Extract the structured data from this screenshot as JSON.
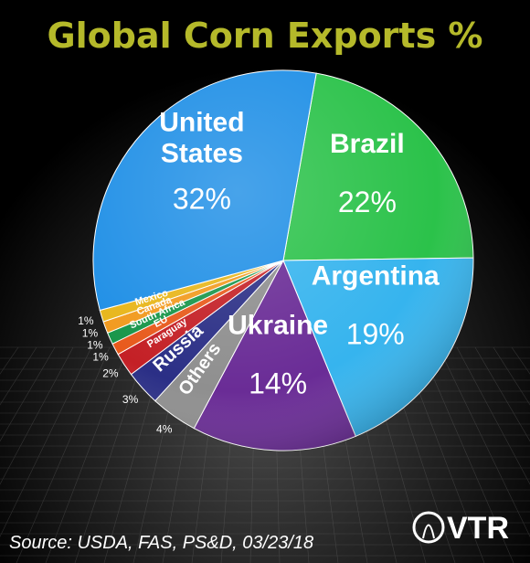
{
  "chart_data": {
    "type": "pie",
    "title": "Global Corn Exports %",
    "source": "Source: USDA, FAS, PS&D, 03/23/18",
    "logo_text": "VTR",
    "slices": [
      {
        "label": "Brazil",
        "value": 22,
        "value_label": "22%",
        "color": "#2bc24a"
      },
      {
        "label": "Argentina",
        "value": 19,
        "value_label": "19%",
        "color": "#36b4ee"
      },
      {
        "label": "Ukraine",
        "value": 14,
        "value_label": "14%",
        "color": "#6a2c96"
      },
      {
        "label": "Others",
        "value": 4,
        "value_label": "4%",
        "color": "#8f8f8f"
      },
      {
        "label": "Russia",
        "value": 3,
        "value_label": "3%",
        "color": "#2b2f86"
      },
      {
        "label": "Paraguay",
        "value": 2,
        "value_label": "2%",
        "color": "#c42026"
      },
      {
        "label": "EU",
        "value": 1,
        "value_label": "1%",
        "color": "#e85a1c"
      },
      {
        "label": "South Africa",
        "value": 1,
        "value_label": "1%",
        "color": "#18964a"
      },
      {
        "label": "Canada",
        "value": 1,
        "value_label": "1%",
        "color": "#f29a1e"
      },
      {
        "label": "Mexico",
        "value": 1,
        "value_label": "1%",
        "color": "#e8b61a"
      },
      {
        "label": "United States",
        "value": 32,
        "value_label": "32%",
        "color": "#1f8fe6"
      }
    ],
    "title_color": "#b5b92a"
  }
}
